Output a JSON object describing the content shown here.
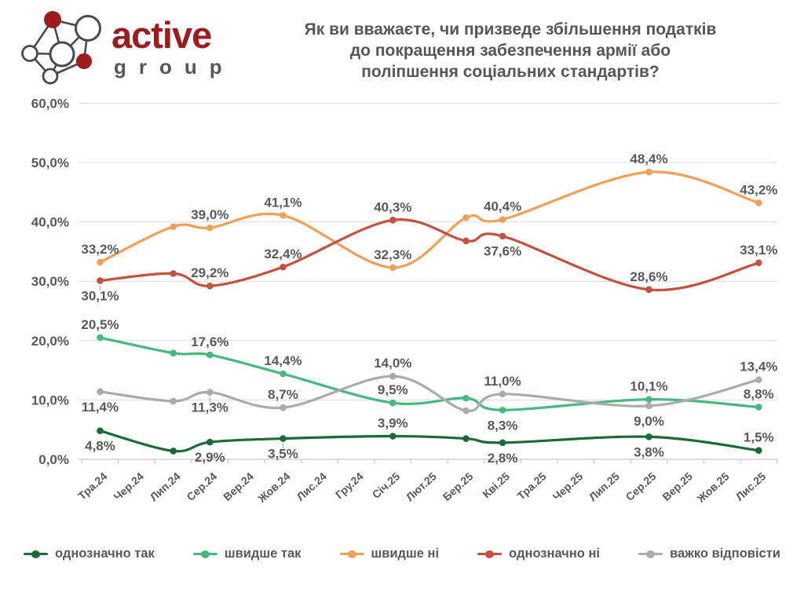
{
  "logo": {
    "brand_text": "active",
    "brand_sub_text": "group",
    "brand_color": "#9E1B1F",
    "sub_color": "#56575B",
    "icon": "network-graph-icon"
  },
  "title": {
    "lines": [
      "Як ви вважаєте, чи призведе збільшення податків",
      "до покращення забезпечення армії або",
      "поліпшення соціальних стандартів?"
    ]
  },
  "chart_data": {
    "type": "line",
    "title": "Як ви вважаєте, чи призведе збільшення податків до покращення забезпечення армії або поліпшення соціальних стандартів?",
    "x_categories": [
      "Тра.24",
      "Чер.24",
      "Лип.24",
      "Сер.24",
      "Вер.24",
      "Жов.24",
      "Лис.24",
      "Гру.24",
      "Січ.25",
      "Лют.25",
      "Бер.25",
      "Кві.25",
      "Тра.25",
      "Чер.25",
      "Лип.25",
      "Сер.25",
      "Вер.25",
      "Жов.25",
      "Лис.25"
    ],
    "wave_indices": [
      0,
      2,
      3,
      5,
      8,
      10,
      11,
      15,
      18
    ],
    "ylim": [
      0,
      60
    ],
    "y_tick_step": 10,
    "y_tick_labels": [
      "0,0%",
      "10,0%",
      "20,0%",
      "30,0%",
      "40,0%",
      "50,0%",
      "60,0%"
    ],
    "grid": true,
    "smooth": true,
    "legend_position": "bottom",
    "label_decimal_separator": ",",
    "colors": {
      "grid": "#DBDBDB",
      "axis": "#C8C8C8",
      "text": "#595959"
    },
    "series": [
      {
        "id": "definitely-yes",
        "name": "однозначно так",
        "color": "#1B6A3A",
        "values": [
          4.8,
          1.4,
          2.9,
          3.5,
          3.9,
          3.5,
          2.8,
          3.8,
          1.5
        ],
        "labels": [
          "4,8%",
          null,
          "2,9%",
          "3,5%",
          "3,9%",
          null,
          "2,8%",
          "3,8%",
          "1,5%"
        ],
        "label_side": [
          "below",
          null,
          "below",
          "below-leader",
          "above",
          null,
          "below",
          "below",
          "above"
        ]
      },
      {
        "id": "rather-yes",
        "name": "швидше так",
        "color": "#45BA80",
        "values": [
          20.5,
          17.9,
          17.6,
          14.4,
          9.5,
          10.3,
          8.3,
          10.1,
          8.8
        ],
        "labels": [
          "20,5%",
          null,
          "17,6%",
          "14,4%",
          "9,5%",
          null,
          "8,3%",
          "10,1%",
          "8,8%"
        ],
        "label_side": [
          "above",
          null,
          "above",
          "above",
          "above",
          null,
          "below",
          "above",
          "above"
        ]
      },
      {
        "id": "rather-no",
        "name": "швидше ні",
        "color": "#F0A155",
        "values": [
          33.2,
          39.2,
          39.0,
          41.1,
          32.3,
          40.7,
          40.4,
          48.4,
          43.2
        ],
        "labels": [
          "33,2%",
          null,
          "39,0%",
          "41,1%",
          "32,3%",
          null,
          "40,4%",
          "48,4%",
          "43,2%"
        ],
        "label_side": [
          "above",
          null,
          "above",
          "above",
          "above",
          null,
          "above",
          "above",
          "above"
        ]
      },
      {
        "id": "definitely-no",
        "name": "однозначно ні",
        "color": "#C5503E",
        "values": [
          30.1,
          31.3,
          29.2,
          32.4,
          40.3,
          36.8,
          37.6,
          28.6,
          33.1
        ],
        "labels": [
          "30,1%",
          null,
          "29,2%",
          "32,4%",
          "40,3%",
          null,
          "37,6%",
          "28,6%",
          "33,1%"
        ],
        "label_side": [
          "below-leader",
          null,
          "above",
          "above",
          "above",
          null,
          "below",
          "above",
          "above"
        ]
      },
      {
        "id": "hard-to-say",
        "name": "важко відповісти",
        "color": "#ABABAB",
        "values": [
          11.4,
          9.8,
          11.3,
          8.7,
          14.0,
          8.2,
          11.0,
          9.0,
          13.4
        ],
        "labels": [
          "11,4%",
          null,
          "11,3%",
          "8,7%",
          "14,0%",
          null,
          "11,0%",
          "9,0%",
          "13,4%"
        ],
        "label_side": [
          "below",
          null,
          "below-leader",
          "above",
          "above",
          null,
          "above",
          "below",
          "above"
        ]
      }
    ]
  },
  "legend": {
    "items": [
      "однозначно так",
      "швидше так",
      "швидше ні",
      "однозначно ні",
      "важко відповісти"
    ]
  }
}
